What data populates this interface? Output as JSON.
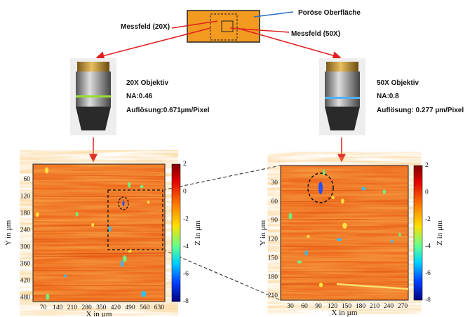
{
  "header": {
    "surface_label": "Poröse Oberfläche",
    "field_20x": "Messfeld (20X)",
    "field_50x": "Messfeld (50X)"
  },
  "objectives": [
    {
      "name": "20X Objektiv",
      "na": "NA:0.46",
      "resolution": "Auflösung:0.671µm/Pixel"
    },
    {
      "name": "50X Objektiv",
      "na": "NA:0.8",
      "resolution": "Auflösung: 0.277 µm/Pixel"
    }
  ],
  "maps": [
    {
      "x_label": "X in µm",
      "y_label": "Y in µm",
      "z_label": "Z in µm",
      "xticks": [
        70,
        140,
        210,
        280,
        350,
        420,
        490,
        560,
        630
      ],
      "yticks": [
        60,
        120,
        180,
        240,
        300,
        360,
        420,
        480
      ],
      "zticks": [
        2,
        0,
        -2,
        -4,
        -6,
        -8
      ]
    },
    {
      "x_label": "X in µm",
      "y_label": "Y in µm",
      "z_label": "Z in µm",
      "xticks": [
        30,
        60,
        90,
        120,
        150,
        180,
        210,
        240,
        270
      ],
      "yticks": [
        30,
        60,
        90,
        120,
        150,
        180,
        210
      ],
      "zticks": [
        2,
        0,
        -2,
        -4,
        -6,
        -8
      ]
    }
  ]
}
